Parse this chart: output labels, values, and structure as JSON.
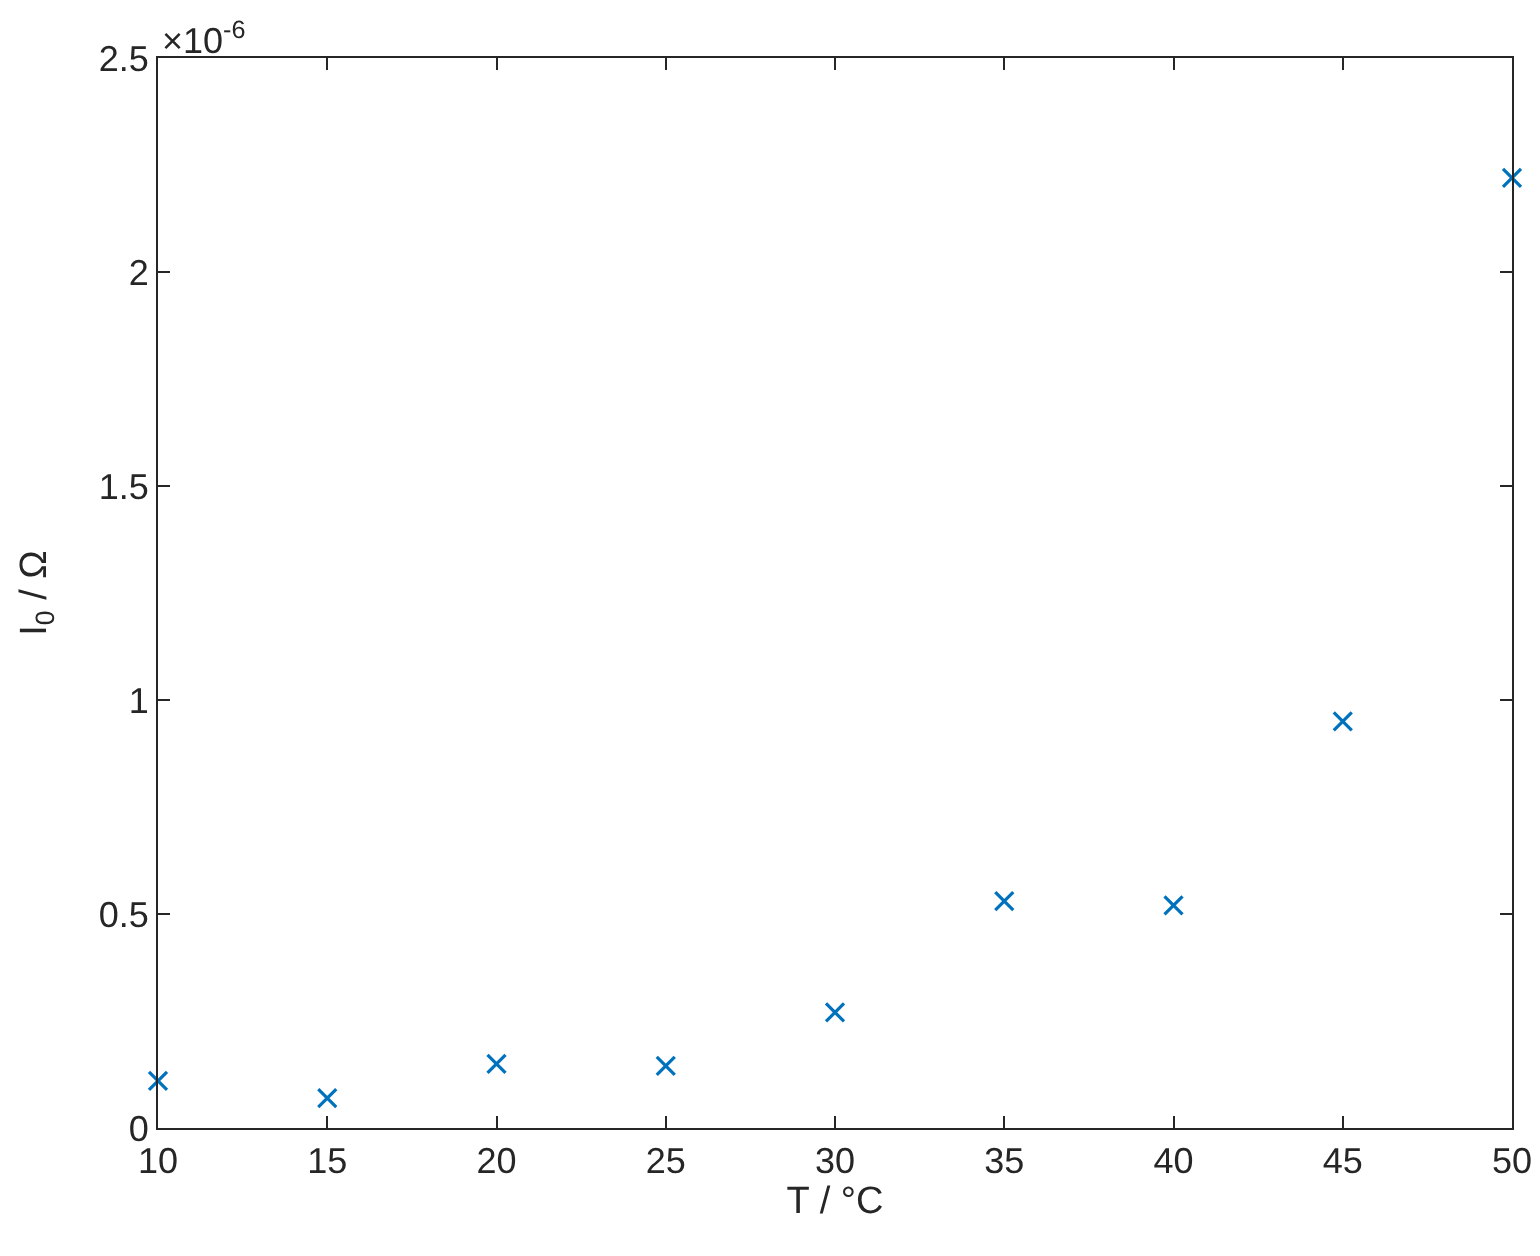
{
  "chart_data": {
    "type": "scatter",
    "x": [
      10,
      15,
      20,
      25,
      30,
      35,
      40,
      45,
      50
    ],
    "series": [
      {
        "color": "#0072bd",
        "values": [
          0.11,
          0.07,
          0.15,
          0.145,
          0.27,
          0.53,
          0.52,
          0.95,
          2.22
        ]
      }
    ],
    "xlabel": "T / °C",
    "ylabel": "I$_{0}$ / Ω",
    "annotations": [
      "×10$^{-6}$"
    ],
    "xlim": [
      10,
      50
    ],
    "xticks": [
      10,
      15,
      20,
      25,
      30,
      35,
      40,
      45,
      50
    ],
    "ylim": [
      0,
      2.5
    ],
    "yticks": [
      0,
      0.5,
      1,
      1.5,
      2,
      2.5
    ],
    "marker": "cross"
  }
}
